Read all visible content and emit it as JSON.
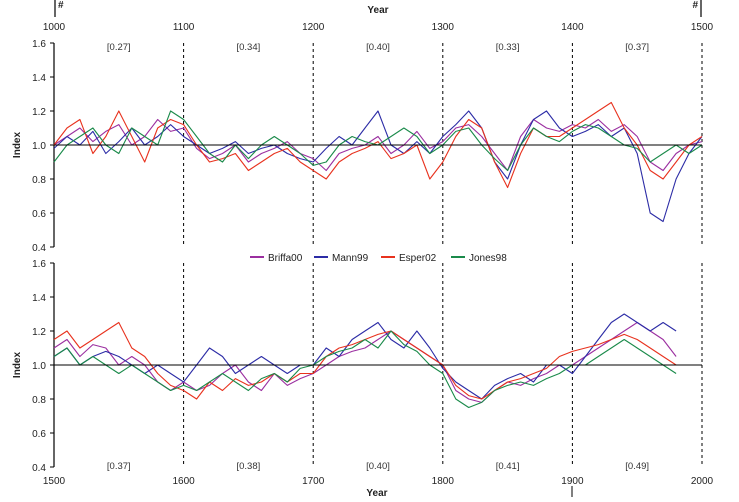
{
  "chart_data": [
    {
      "type": "line",
      "panel": "top",
      "xlabel": "Year",
      "ylabel": "Index",
      "xlim": [
        1000,
        1500
      ],
      "ylim": [
        0.4,
        1.6
      ],
      "x_ticks": [
        "1000",
        "1100",
        "1200",
        "1300",
        "1400",
        "1500"
      ],
      "y_ticks": [
        "0.4",
        "0.6",
        "0.8",
        "1.0",
        "1.2",
        "1.4",
        "1.6"
      ],
      "corner_marks": [
        "#",
        "#"
      ],
      "reference_line": 1.0,
      "dashed_lines_at": [
        1100,
        1200,
        1300,
        1400,
        1500
      ],
      "interval_labels": [
        {
          "x": 1050,
          "text": "[0.27]"
        },
        {
          "x": 1150,
          "text": "[0.34]"
        },
        {
          "x": 1250,
          "text": "[0.40]"
        },
        {
          "x": 1350,
          "text": "[0.33]"
        },
        {
          "x": 1450,
          "text": "[0.37]"
        }
      ],
      "x_start": 1000,
      "x_step": 10,
      "series": [
        {
          "name": "Briffa00",
          "color": "#9b2fa0",
          "values": [
            1.0,
            1.05,
            1.1,
            1.02,
            1.08,
            1.12,
            1.0,
            1.05,
            1.15,
            1.08,
            1.1,
            0.98,
            0.92,
            0.95,
            1.0,
            0.9,
            0.95,
            0.98,
            1.02,
            0.95,
            0.92,
            0.85,
            0.95,
            0.98,
            1.0,
            1.05,
            0.95,
            1.0,
            1.08,
            0.98,
            1.02,
            1.1,
            1.12,
            1.05,
            0.95,
            0.85,
            1.05,
            1.15,
            1.1,
            1.08,
            1.12,
            1.1,
            1.15,
            1.08,
            1.12,
            1.05,
            0.9,
            0.85,
            0.95,
            1.0,
            1.02
          ]
        },
        {
          "name": "Mann99",
          "color": "#2c2ca6",
          "values": [
            0.98,
            1.05,
            1.0,
            1.08,
            0.95,
            1.02,
            1.1,
            1.0,
            1.05,
            1.12,
            1.05,
            1.0,
            0.95,
            0.98,
            1.02,
            0.95,
            0.98,
            1.0,
            0.95,
            0.92,
            0.9,
            0.98,
            1.05,
            1.0,
            1.1,
            1.2,
            1.0,
            0.95,
            1.02,
            0.95,
            1.05,
            1.12,
            1.2,
            1.1,
            0.9,
            0.8,
            1.0,
            1.15,
            1.2,
            1.1,
            1.05,
            1.08,
            1.12,
            1.05,
            1.1,
            0.95,
            0.6,
            0.55,
            0.8,
            0.95,
            1.05
          ]
        },
        {
          "name": "Esper02",
          "color": "#e8321e",
          "values": [
            1.0,
            1.1,
            1.15,
            0.95,
            1.05,
            1.2,
            1.05,
            0.9,
            1.1,
            1.15,
            1.12,
            1.0,
            0.9,
            0.92,
            0.95,
            0.85,
            0.9,
            0.95,
            0.98,
            0.9,
            0.85,
            0.8,
            0.9,
            0.95,
            0.98,
            1.02,
            0.92,
            0.95,
            1.0,
            0.8,
            0.9,
            1.05,
            1.15,
            1.1,
            0.9,
            0.75,
            0.95,
            1.1,
            1.05,
            1.05,
            1.1,
            1.15,
            1.2,
            1.25,
            1.1,
            1.0,
            0.85,
            0.8,
            0.9,
            1.0,
            1.05
          ]
        },
        {
          "name": "Jones98",
          "color": "#1a8a4a",
          "values": [
            0.9,
            1.0,
            1.05,
            1.1,
            1.0,
            0.95,
            1.1,
            1.05,
            1.0,
            1.2,
            1.15,
            1.05,
            0.95,
            0.9,
            1.0,
            0.92,
            1.0,
            1.05,
            1.0,
            0.95,
            0.88,
            0.9,
            1.0,
            1.05,
            1.02,
            1.0,
            1.05,
            1.1,
            1.05,
            0.95,
            1.0,
            1.08,
            1.1,
            1.0,
            0.92,
            0.85,
            1.0,
            1.1,
            1.05,
            1.02,
            1.08,
            1.12,
            1.1,
            1.05,
            1.0,
            0.98,
            0.9,
            0.95,
            1.0,
            0.95,
            1.0
          ]
        }
      ]
    },
    {
      "type": "line",
      "panel": "bottom",
      "xlabel": "Year",
      "ylabel": "Index",
      "xlim": [
        1500,
        2000
      ],
      "ylim": [
        0.4,
        1.6
      ],
      "x_ticks": [
        "1500",
        "1600",
        "1700",
        "1800",
        "1900",
        "2000"
      ],
      "y_ticks": [
        "0.4",
        "0.6",
        "0.8",
        "1.0",
        "1.2",
        "1.4",
        "1.6"
      ],
      "reference_line": 1.0,
      "dashed_lines_at": [
        1600,
        1700,
        1800,
        1900,
        2000
      ],
      "interval_labels": [
        {
          "x": 1550,
          "text": "[0.37]"
        },
        {
          "x": 1650,
          "text": "[0.38]"
        },
        {
          "x": 1750,
          "text": "[0.40]"
        },
        {
          "x": 1850,
          "text": "[0.41]"
        },
        {
          "x": 1950,
          "text": "[0.49]"
        }
      ],
      "x_start": 1500,
      "x_step": 10,
      "series": [
        {
          "name": "Briffa00",
          "color": "#9b2fa0",
          "values": [
            1.1,
            1.15,
            1.05,
            1.12,
            1.1,
            1.0,
            1.05,
            1.0,
            0.9,
            0.85,
            0.9,
            0.85,
            0.88,
            0.95,
            1.0,
            0.9,
            0.85,
            0.95,
            0.88,
            0.92,
            0.95,
            1.0,
            1.05,
            1.08,
            1.1,
            1.15,
            1.2,
            1.15,
            1.1,
            1.05,
            1.0,
            0.85,
            0.8,
            0.78,
            0.85,
            0.9,
            0.88,
            0.92,
            0.95,
            1.0,
            1.0,
            1.05,
            1.1,
            1.15,
            1.2,
            1.25,
            1.2,
            1.15,
            1.05
          ]
        },
        {
          "name": "Mann99",
          "color": "#2c2ca6",
          "values": [
            1.05,
            1.1,
            1.0,
            1.05,
            1.08,
            1.05,
            1.0,
            0.95,
            1.0,
            0.95,
            0.9,
            1.0,
            1.1,
            1.05,
            0.95,
            1.0,
            1.05,
            1.0,
            0.95,
            1.0,
            1.0,
            1.1,
            1.05,
            1.15,
            1.2,
            1.25,
            1.15,
            1.1,
            1.2,
            1.1,
            0.98,
            0.9,
            0.85,
            0.8,
            0.88,
            0.92,
            0.95,
            0.9,
            1.0,
            1.0,
            0.95,
            1.05,
            1.15,
            1.25,
            1.3,
            1.25,
            1.2,
            1.25,
            1.2
          ]
        },
        {
          "name": "Esper02",
          "color": "#e8321e",
          "values": [
            1.15,
            1.2,
            1.1,
            1.15,
            1.2,
            1.25,
            1.1,
            1.05,
            0.95,
            0.88,
            0.85,
            0.8,
            0.9,
            0.85,
            0.92,
            0.88,
            0.9,
            0.95,
            0.9,
            0.95,
            0.95,
            1.05,
            1.1,
            1.12,
            1.15,
            1.18,
            1.2,
            1.15,
            1.1,
            1.05,
            1.0,
            0.88,
            0.82,
            0.8,
            0.85,
            0.9,
            0.92,
            0.95,
            0.98,
            1.05,
            1.08,
            1.1,
            1.12,
            1.15,
            1.18,
            1.15,
            1.1,
            1.05,
            1.0
          ]
        },
        {
          "name": "Jones98",
          "color": "#1a8a4a",
          "values": [
            1.05,
            1.1,
            1.0,
            1.05,
            1.0,
            0.95,
            1.0,
            0.95,
            0.9,
            0.85,
            0.88,
            0.85,
            0.9,
            0.95,
            0.9,
            0.85,
            0.92,
            0.95,
            0.9,
            0.98,
            1.0,
            1.05,
            1.08,
            1.1,
            1.15,
            1.1,
            1.2,
            1.12,
            1.08,
            1.0,
            0.95,
            0.8,
            0.75,
            0.78,
            0.85,
            0.88,
            0.9,
            0.88,
            0.92,
            0.95,
            1.0,
            1.0,
            1.05,
            1.1,
            1.15,
            1.1,
            1.05,
            1.0,
            0.95
          ]
        }
      ]
    }
  ],
  "legend": [
    "Briffa00",
    "Mann99",
    "Esper02",
    "Jones98"
  ]
}
